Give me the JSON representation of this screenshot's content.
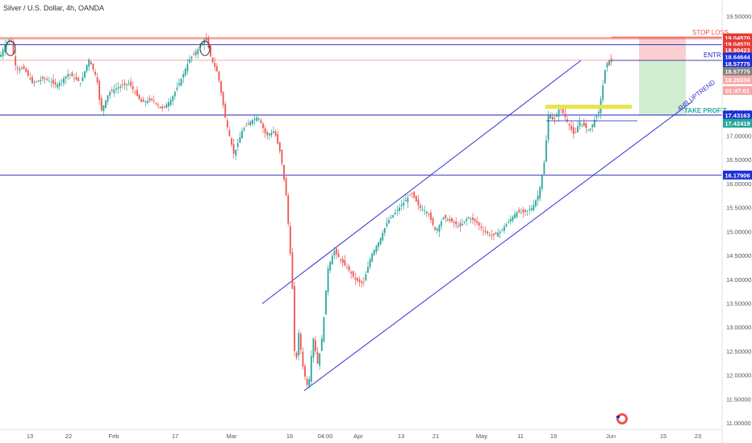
{
  "header": {
    "symbol_title": "Silver / U.S. Dollar, 4h, OANDA"
  },
  "chart_data": {
    "type": "candlestick",
    "title": "Silver / U.S. Dollar, 4h, OANDA",
    "ylim": [
      11.0,
      20.05
    ],
    "y_ticks": [
      "11.00000",
      "11.50000",
      "12.00000",
      "12.50000",
      "13.00000",
      "13.50000",
      "14.00000",
      "14.50000",
      "15.00000",
      "15.50000",
      "16.00000",
      "16.50000",
      "17.00000",
      "17.50000",
      "18.00000",
      "18.50000",
      "19.00000",
      "19.50000"
    ],
    "x_ticks": [
      "13",
      "22",
      "Feb",
      "17",
      "Mar",
      "16",
      "04:00",
      "Apr",
      "13",
      "21",
      "May",
      "11",
      "19",
      "Jun",
      "15",
      "23"
    ],
    "colors": {
      "up": "#26a69a",
      "down": "#ef5350",
      "channel": "#2f2fd6",
      "hline": "#1f1fbf",
      "stop": "#ef5350",
      "zone": "#e6e64a"
    },
    "price_path": [
      [
        0,
        18.65
      ],
      [
        6,
        18.9
      ],
      [
        13,
        19.05
      ],
      [
        20,
        18.4
      ],
      [
        30,
        18.4
      ],
      [
        40,
        18.1
      ],
      [
        55,
        18.2
      ],
      [
        70,
        18.05
      ],
      [
        85,
        18.3
      ],
      [
        100,
        18.1
      ],
      [
        110,
        18.6
      ],
      [
        120,
        18.2
      ],
      [
        125,
        17.5
      ],
      [
        135,
        17.9
      ],
      [
        145,
        18.0
      ],
      [
        160,
        18.1
      ],
      [
        175,
        17.7
      ],
      [
        190,
        17.75
      ],
      [
        200,
        17.55
      ],
      [
        212,
        17.75
      ],
      [
        225,
        18.2
      ],
      [
        235,
        18.6
      ],
      [
        245,
        18.8
      ],
      [
        255,
        19.05
      ],
      [
        262,
        18.6
      ],
      [
        270,
        18.3
      ],
      [
        280,
        17.3
      ],
      [
        290,
        16.6
      ],
      [
        300,
        17.1
      ],
      [
        310,
        17.3
      ],
      [
        320,
        17.4
      ],
      [
        330,
        17.0
      ],
      [
        340,
        17.1
      ],
      [
        348,
        16.6
      ],
      [
        355,
        15.7
      ],
      [
        362,
        14.0
      ],
      [
        366,
        12.0
      ],
      [
        370,
        12.9
      ],
      [
        376,
        12.1
      ],
      [
        382,
        11.7
      ],
      [
        388,
        12.8
      ],
      [
        394,
        12.2
      ],
      [
        400,
        12.9
      ],
      [
        406,
        14.2
      ],
      [
        414,
        14.6
      ],
      [
        422,
        14.4
      ],
      [
        432,
        14.2
      ],
      [
        440,
        14.0
      ],
      [
        450,
        13.9
      ],
      [
        460,
        14.5
      ],
      [
        470,
        14.8
      ],
      [
        480,
        15.2
      ],
      [
        490,
        15.4
      ],
      [
        500,
        15.6
      ],
      [
        510,
        15.8
      ],
      [
        520,
        15.5
      ],
      [
        530,
        15.4
      ],
      [
        540,
        15.0
      ],
      [
        550,
        15.3
      ],
      [
        560,
        15.2
      ],
      [
        570,
        15.1
      ],
      [
        580,
        15.3
      ],
      [
        590,
        15.2
      ],
      [
        600,
        15.0
      ],
      [
        610,
        14.9
      ],
      [
        620,
        15.0
      ],
      [
        630,
        15.2
      ],
      [
        640,
        15.4
      ],
      [
        650,
        15.4
      ],
      [
        660,
        15.5
      ],
      [
        668,
        15.8
      ],
      [
        675,
        16.5
      ],
      [
        680,
        17.5
      ],
      [
        686,
        17.3
      ],
      [
        694,
        17.6
      ],
      [
        700,
        17.4
      ],
      [
        706,
        17.2
      ],
      [
        712,
        17.0
      ],
      [
        718,
        17.3
      ],
      [
        724,
        17.2
      ],
      [
        730,
        17.1
      ],
      [
        736,
        17.3
      ],
      [
        742,
        17.5
      ],
      [
        746,
        17.9
      ],
      [
        750,
        18.4
      ],
      [
        754,
        18.6
      ],
      [
        760,
        18.5
      ]
    ],
    "horizontal_levels": [
      19.0457,
      18.9042,
      18.5777,
      17.4316,
      16.1791
    ],
    "price_badges": [
      {
        "label": "19.04570",
        "value": 19.0457,
        "bg": "#e53935"
      },
      {
        "label": "19.04570",
        "value": 18.92,
        "bg": "#e53935"
      },
      {
        "label": "18.90423",
        "value": 18.79,
        "bg": "#e53935"
      },
      {
        "label": "18.64644",
        "value": 18.64644,
        "bg": "#1a2fd6"
      },
      {
        "label": "18.57775",
        "value": 18.51,
        "bg": "#1a2fd6"
      },
      {
        "label": "18.57775",
        "value": 18.345,
        "bg": "#808080"
      },
      {
        "label": "18.28334",
        "value": 18.17,
        "bg": "#f5a8a8"
      },
      {
        "label": "01:47:01",
        "value": 17.945,
        "bg": "#f5a8a8"
      },
      {
        "label": "17.43163",
        "value": 17.43163,
        "bg": "#1a2fd6"
      },
      {
        "label": "17.42419",
        "value": 17.262,
        "bg": "#26a69a"
      },
      {
        "label": "16.17906",
        "value": 16.17906,
        "bg": "#1a2fd6"
      }
    ],
    "annotations": {
      "stop_loss": "STOP LOSS",
      "entry": "ENTRY",
      "take_profit": "TAKE PROFIT",
      "trend_label": "4HR UPTREND"
    },
    "trade_levels": {
      "stop": 19.0457,
      "entry": 18.5777,
      "take_profit": 17.4316
    }
  }
}
